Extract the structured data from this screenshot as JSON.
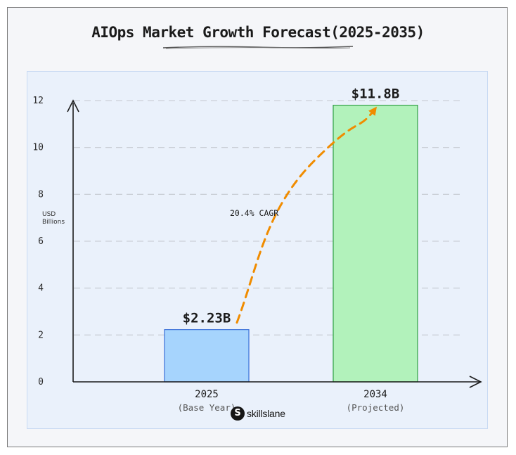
{
  "title": "AIOps Market Growth Forecast(2025-2035)",
  "brand": {
    "logo_letter": "S",
    "name": "skillslane"
  },
  "colors": {
    "bar_2025_fill": "#a6d4fd",
    "bar_2025_stroke": "#3a6fd8",
    "bar_2034_fill": "#b2f2bb",
    "bar_2034_stroke": "#2f9e44",
    "trend_arrow": "#f08c00",
    "panel_bg": "#eaf1fb",
    "frame_bg": "#f5f6f9"
  },
  "chart_data": {
    "type": "bar",
    "title": "AIOps Market Growth Forecast(2025-2035)",
    "ylabel": "USD Billions",
    "xlabel": "",
    "categories": [
      "2025",
      "2034"
    ],
    "category_sublabels": [
      "(Base Year)",
      "(Projected)"
    ],
    "values": [
      2.23,
      11.8
    ],
    "data_labels": [
      "$2.23B",
      "$11.8B"
    ],
    "ylim": [
      0,
      12
    ],
    "yticks": [
      0,
      2,
      4,
      6,
      8,
      10,
      12
    ],
    "grid": true,
    "annotation": "20.4% CAGR"
  }
}
